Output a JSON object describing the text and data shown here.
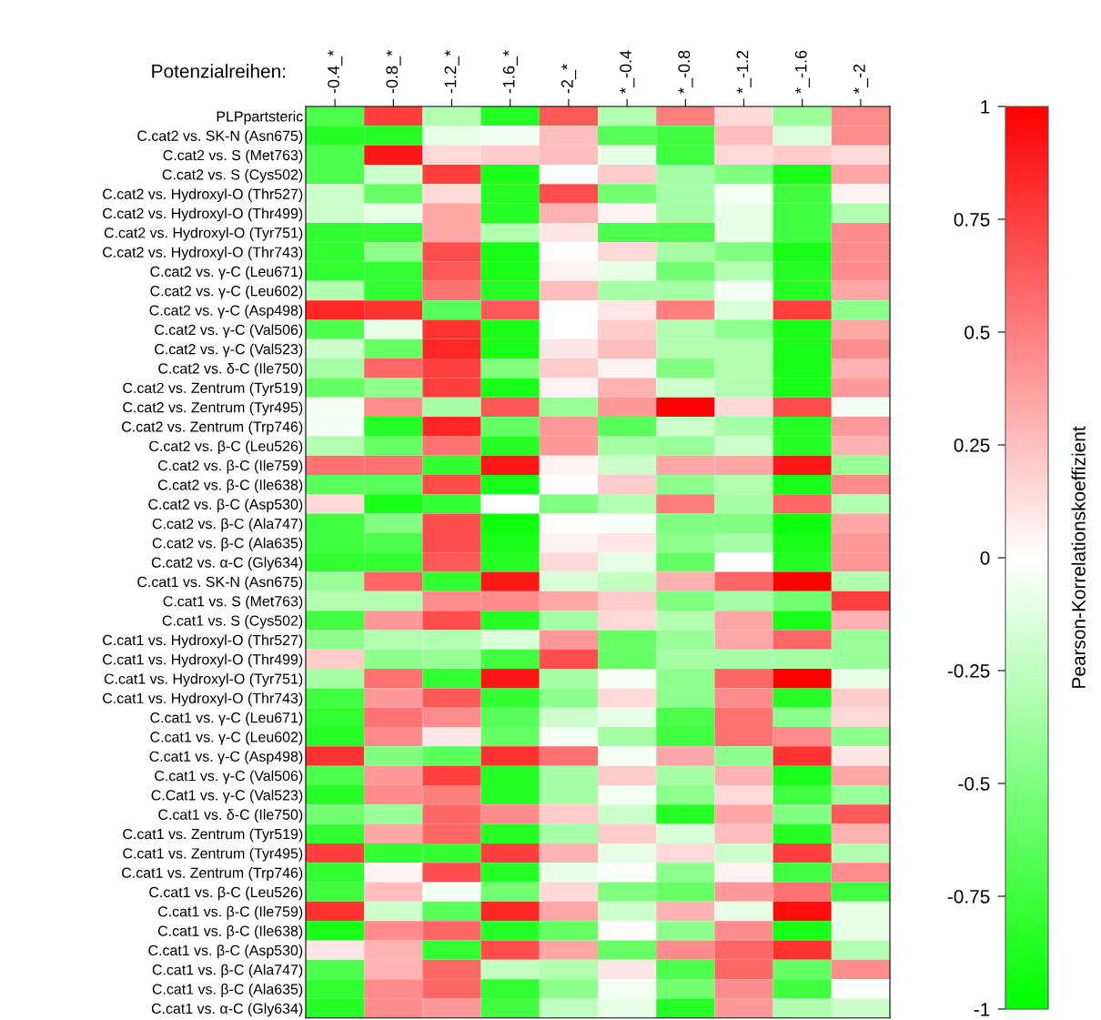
{
  "chart_data": {
    "type": "heatmap",
    "clabel": "Pearson-Korrelationskoeffizient",
    "annotations": [
      "Potenzialreihen:"
    ],
    "categories": [
      "-0.4_*",
      "-0.8_*",
      "-1.2_*",
      "-1.6_*",
      "-2_*",
      "*_-0.4",
      "*_-0.8",
      "*_-1.2",
      "*_-1.6",
      "*_-2"
    ],
    "y_categories": [
      "PLPpartsteric",
      "C.cat2 vs. SK-N (Asn675)",
      "C.cat2 vs. S (Met763)",
      "C.cat2 vs. S (Cys502)",
      "C.cat2 vs. Hydroxyl-O (Thr527)",
      "C.cat2 vs. Hydroxyl-O (Thr499)",
      "C.cat2 vs. Hydroxyl-O (Tyr751)",
      "C.cat2 vs. Hydroxyl-O (Thr743)",
      "C.cat2 vs. γ-C (Leu671)",
      "C.cat2 vs. γ-C (Leu602)",
      "C.cat2 vs. γ-C (Asp498)",
      "C.cat2 vs. γ-C (Val506)",
      "C.cat2 vs. γ-C (Val523)",
      "C.cat2 vs. δ-C (Ile750)",
      "C.cat2 vs. Zentrum (Tyr519)",
      "C.cat2 vs. Zentrum (Tyr495)",
      "C.cat2 vs. Zentrum (Trp746)",
      "C.cat2 vs. β-C (Leu526)",
      "C.cat2 vs. β-C (Ile759)",
      "C.cat2 vs. β-C (Ile638)",
      "C.cat2 vs. β-C (Asp530)",
      "C.cat2 vs. β-C (Ala747)",
      "C.cat2 vs. β-C (Ala635)",
      "C.cat2 vs. α-C (Gly634)",
      "C.cat1 vs. SK-N (Asn675)",
      "C.cat1 vs. S (Met763)",
      "C.cat1 vs. S (Cys502)",
      "C.cat1 vs. Hydroxyl-O (Thr527)",
      "C.cat1 vs. Hydroxyl-O (Thr499)",
      "C.cat1 vs. Hydroxyl-O (Tyr751)",
      "C.cat1 vs. Hydroxyl-O (Thr743)",
      "C.cat1 vs. γ-C (Leu671)",
      "C.cat1 vs. γ-C (Leu602)",
      "C.cat1 vs. γ-C (Asp498)",
      "C.cat1 vs. γ-C (Val506)",
      "C.Cat1 vs. γ-C (Val523)",
      "C.cat1 vs. δ-C (Ile750)",
      "C.cat1 vs. Zentrum (Tyr519)",
      "C.cat1 vs. Zentrum (Tyr495)",
      "C.cat1 vs. Zentrum (Trp746)",
      "C.cat1 vs. β-C (Leu526)",
      "C.cat1 vs. β-C (Ile759)",
      "C.cat1 vs. β-C (Ile638)",
      "C.cat1 vs. β-C (Asp530)",
      "C.cat1 vs. β-C (Ala747)",
      "C.cat1 vs. β-C (Ala635)",
      "C.cat1 vs. α-C (Gly634)"
    ],
    "cells": [
      [
        -0.7,
        0.75,
        -0.3,
        -0.85,
        0.65,
        -0.3,
        0.5,
        0.15,
        -0.4,
        0.45
      ],
      [
        -0.85,
        -0.85,
        -0.1,
        -0.05,
        0.25,
        -0.65,
        -0.75,
        0.25,
        -0.15,
        0.45
      ],
      [
        -0.7,
        0.9,
        0.15,
        0.2,
        0.25,
        -0.1,
        -0.75,
        0.15,
        0.2,
        0.15
      ],
      [
        -0.7,
        -0.2,
        0.75,
        -0.9,
        0.0,
        0.2,
        -0.35,
        -0.5,
        -0.9,
        0.35
      ],
      [
        -0.2,
        -0.6,
        0.15,
        -0.85,
        0.7,
        -0.55,
        -0.35,
        -0.05,
        -0.75,
        0.05
      ],
      [
        -0.2,
        -0.1,
        0.35,
        -0.85,
        0.3,
        0.05,
        -0.35,
        -0.1,
        -0.75,
        -0.3
      ],
      [
        -0.8,
        -0.8,
        0.35,
        -0.3,
        0.1,
        -0.7,
        -0.7,
        -0.1,
        -0.75,
        0.45
      ],
      [
        -0.8,
        -0.45,
        0.7,
        -0.9,
        0.0,
        0.15,
        -0.35,
        -0.5,
        -0.9,
        0.45
      ],
      [
        -0.8,
        -0.8,
        0.65,
        -0.9,
        0.05,
        -0.1,
        -0.55,
        -0.3,
        -0.85,
        0.45
      ],
      [
        -0.3,
        -0.8,
        0.55,
        -0.85,
        0.25,
        -0.35,
        -0.35,
        -0.05,
        -0.85,
        0.35
      ],
      [
        0.85,
        0.8,
        -0.65,
        0.65,
        0.0,
        0.1,
        0.5,
        -0.15,
        0.75,
        -0.45
      ],
      [
        -0.7,
        -0.1,
        0.8,
        -0.9,
        0.0,
        0.2,
        -0.3,
        -0.45,
        -0.9,
        0.35
      ],
      [
        -0.2,
        -0.6,
        0.85,
        -0.9,
        0.1,
        0.25,
        -0.3,
        -0.3,
        -0.9,
        0.45
      ],
      [
        -0.35,
        0.6,
        0.75,
        -0.5,
        0.2,
        0.05,
        -0.5,
        -0.3,
        -0.9,
        0.3
      ],
      [
        -0.6,
        -0.45,
        0.75,
        -0.9,
        0.05,
        0.3,
        -0.2,
        -0.3,
        -0.9,
        0.4
      ],
      [
        -0.05,
        0.45,
        -0.35,
        0.65,
        -0.4,
        0.4,
        1.0,
        0.15,
        0.7,
        -0.05
      ],
      [
        -0.05,
        -0.85,
        0.85,
        -0.6,
        0.4,
        -0.65,
        -0.2,
        -0.35,
        -0.85,
        0.4
      ],
      [
        -0.3,
        -0.6,
        0.55,
        -0.85,
        0.4,
        -0.35,
        -0.4,
        -0.2,
        -0.85,
        0.3
      ],
      [
        0.55,
        0.55,
        -0.8,
        0.9,
        0.05,
        -0.2,
        0.35,
        0.35,
        0.9,
        -0.4
      ],
      [
        -0.65,
        -0.65,
        0.7,
        -0.9,
        0.0,
        0.2,
        -0.45,
        -0.3,
        -0.9,
        0.45
      ],
      [
        0.15,
        -0.9,
        -0.8,
        0.0,
        -0.5,
        -0.3,
        0.5,
        -0.35,
        0.6,
        -0.3
      ],
      [
        -0.75,
        -0.5,
        0.7,
        -0.95,
        0.0,
        -0.03,
        -0.5,
        -0.5,
        -0.95,
        0.35
      ],
      [
        -0.75,
        -0.7,
        0.7,
        -0.9,
        0.05,
        0.1,
        -0.45,
        -0.35,
        -0.9,
        0.4
      ],
      [
        -0.8,
        -0.8,
        0.65,
        -0.85,
        0.15,
        -0.1,
        -0.6,
        0.0,
        -0.85,
        0.4
      ],
      [
        -0.4,
        0.6,
        -0.8,
        0.9,
        -0.15,
        -0.25,
        0.3,
        0.6,
        1.0,
        -0.3
      ],
      [
        -0.3,
        -0.3,
        0.45,
        0.45,
        0.35,
        0.2,
        -0.5,
        -0.35,
        -0.55,
        0.75
      ],
      [
        -0.75,
        0.4,
        0.7,
        -0.85,
        -0.35,
        0.15,
        -0.3,
        0.35,
        -0.9,
        0.3
      ],
      [
        -0.45,
        -0.3,
        -0.3,
        -0.15,
        0.4,
        -0.6,
        -0.4,
        0.35,
        0.6,
        -0.4
      ],
      [
        0.2,
        -0.45,
        -0.4,
        -0.75,
        0.7,
        -0.6,
        -0.35,
        -0.35,
        -0.35,
        -0.4
      ],
      [
        -0.35,
        0.55,
        -0.8,
        0.9,
        -0.35,
        -0.03,
        -0.45,
        0.6,
        1.0,
        -0.1
      ],
      [
        -0.75,
        0.4,
        0.65,
        -0.8,
        -0.45,
        0.15,
        -0.45,
        0.45,
        -0.85,
        0.2
      ],
      [
        -0.8,
        0.55,
        0.45,
        -0.65,
        -0.2,
        -0.1,
        -0.7,
        0.55,
        -0.45,
        0.15
      ],
      [
        -0.85,
        0.45,
        0.1,
        -0.6,
        -0.05,
        -0.35,
        -0.75,
        0.55,
        0.45,
        -0.45
      ],
      [
        0.8,
        -0.5,
        -0.65,
        0.8,
        0.55,
        -0.05,
        0.35,
        -0.45,
        0.8,
        0.1
      ],
      [
        -0.7,
        0.4,
        0.75,
        -0.85,
        -0.35,
        0.2,
        -0.35,
        0.3,
        -0.9,
        0.35
      ],
      [
        -0.85,
        0.45,
        0.5,
        -0.85,
        -0.35,
        -0.05,
        -0.45,
        0.15,
        -0.75,
        -0.4
      ],
      [
        -0.55,
        -0.4,
        0.6,
        0.45,
        0.2,
        -0.2,
        -0.85,
        0.35,
        -0.5,
        0.65
      ],
      [
        -0.8,
        0.35,
        0.6,
        -0.85,
        -0.35,
        0.2,
        -0.15,
        0.25,
        -0.85,
        0.3
      ],
      [
        0.75,
        -0.8,
        -0.8,
        0.75,
        0.3,
        -0.1,
        0.15,
        -0.2,
        0.75,
        -0.3
      ],
      [
        -0.8,
        0.05,
        0.7,
        -0.85,
        -0.1,
        -0.02,
        -0.45,
        0.05,
        -0.75,
        0.45
      ],
      [
        -0.75,
        0.25,
        -0.05,
        -0.55,
        0.15,
        -0.5,
        -0.6,
        0.4,
        0.55,
        -0.75
      ],
      [
        0.8,
        -0.2,
        -0.65,
        0.85,
        0.35,
        -0.2,
        0.3,
        -0.1,
        0.95,
        -0.1
      ],
      [
        -0.9,
        0.45,
        0.6,
        -0.85,
        -0.6,
        0.0,
        -0.45,
        0.45,
        -0.9,
        -0.1
      ],
      [
        0.1,
        0.3,
        -0.8,
        0.7,
        0.35,
        -0.6,
        0.45,
        0.6,
        0.8,
        -0.3
      ],
      [
        -0.7,
        0.3,
        0.6,
        -0.25,
        -0.3,
        0.1,
        -0.7,
        0.6,
        -0.6,
        0.45
      ],
      [
        -0.8,
        0.45,
        0.6,
        -0.8,
        -0.45,
        -0.05,
        -0.55,
        0.45,
        -0.75,
        0.0
      ],
      [
        -0.85,
        0.45,
        0.4,
        -0.75,
        -0.25,
        -0.1,
        -0.85,
        0.4,
        -0.3,
        -0.2
      ]
    ],
    "clim": [
      -1,
      1
    ],
    "cticks": [
      1,
      0.75,
      0.5,
      0.25,
      0,
      -0.25,
      -0.5,
      -0.75,
      -1
    ]
  }
}
